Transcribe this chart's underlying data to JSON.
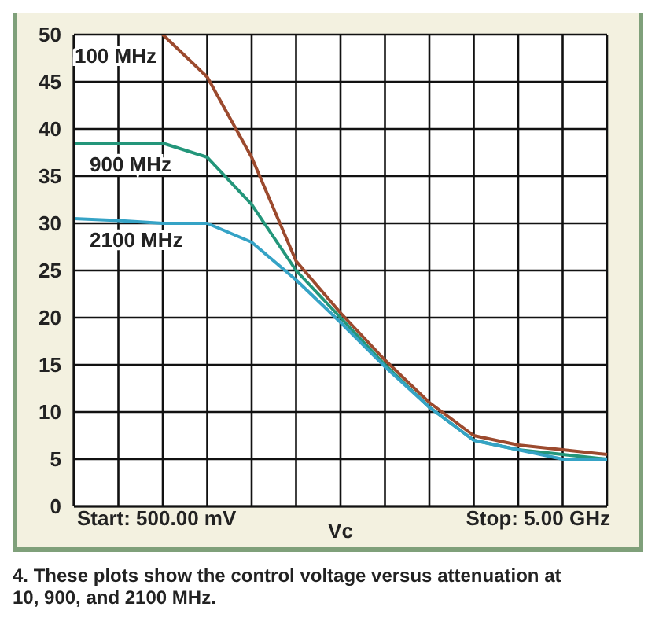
{
  "chart_data": {
    "type": "line",
    "xlabel": "Vc",
    "categories": [
      null,
      null,
      null,
      null,
      null,
      null,
      null,
      null,
      null,
      null,
      null,
      null,
      null
    ],
    "series": [
      {
        "name": "100 MHz",
        "color": "#9c4a2e",
        "values": [
          null,
          null,
          50,
          45.5,
          37,
          26,
          20.5,
          15.5,
          11,
          7.5,
          6.5,
          6,
          5.5
        ]
      },
      {
        "name": "900 MHz",
        "color": "#23967a",
        "values": [
          38.5,
          38.5,
          38.5,
          37,
          32,
          25,
          20,
          15,
          10.5,
          7,
          6,
          5.5,
          5
        ]
      },
      {
        "name": "2100 MHz",
        "color": "#35a3c6",
        "values": [
          30.5,
          30.3,
          30,
          30,
          28,
          24,
          19.5,
          14.8,
          10.5,
          7,
          6,
          5,
          5
        ]
      }
    ],
    "ylim": [
      0,
      50
    ],
    "yticks": [
      0,
      5,
      10,
      15,
      20,
      25,
      30,
      35,
      40,
      45,
      50
    ],
    "grid": true,
    "marker": "none",
    "line_style": "solid",
    "annotations": [
      "Start: 500.00 mV",
      "Stop: 5.00 GHz",
      "4. These plots show the control voltage versus attenuation at 10, 900, and 2100 MHz."
    ]
  }
}
